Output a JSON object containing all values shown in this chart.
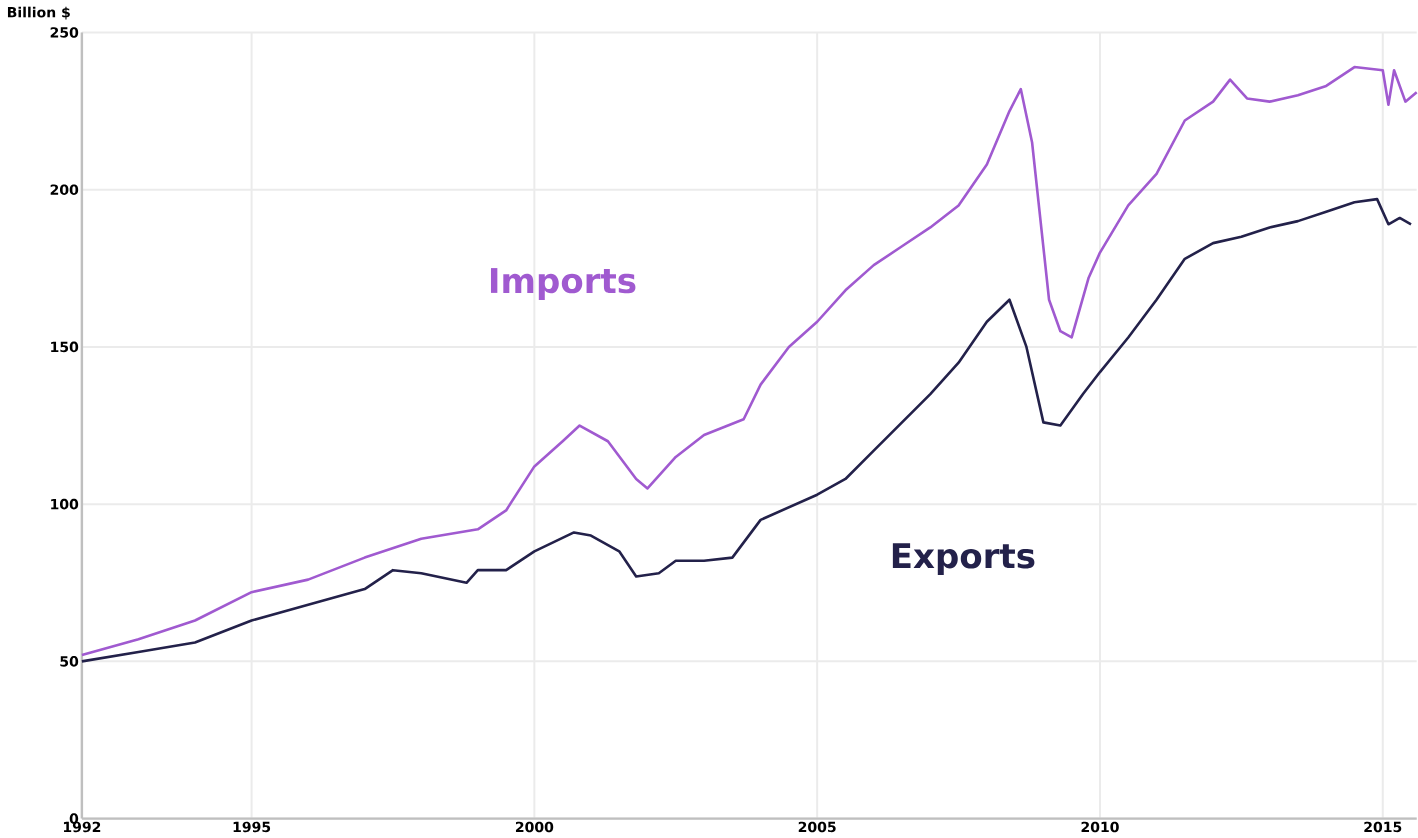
{
  "chart_data": {
    "type": "line",
    "ylabel": "Billion $",
    "xlim": [
      1992,
      2015.6
    ],
    "xticks": [
      1992,
      1995,
      2000,
      2005,
      2010,
      2015
    ],
    "ylim": [
      0,
      250
    ],
    "yticks": [
      0,
      50,
      100,
      150,
      200,
      250
    ],
    "grid": true,
    "legend": false,
    "marker": "none",
    "line_style": "solid",
    "series": [
      {
        "name": "Imports",
        "color": "#a05ad0",
        "x": [
          1992,
          1993,
          1994,
          1995,
          1996,
          1997,
          1998,
          1999,
          1999.5,
          2000,
          2000.5,
          2000.8,
          2001.3,
          2001.8,
          2002,
          2002.5,
          2003,
          2003.7,
          2004,
          2004.5,
          2005,
          2005.5,
          2006,
          2006.5,
          2007,
          2007.5,
          2008,
          2008.4,
          2008.6,
          2008.8,
          2009.1,
          2009.3,
          2009.5,
          2009.8,
          2010,
          2010.5,
          2011,
          2011.5,
          2012,
          2012.3,
          2012.6,
          2013,
          2013.5,
          2014,
          2014.5,
          2015,
          2015.1,
          2015.2,
          2015.4,
          2015.6
        ],
        "values": [
          52,
          57,
          63,
          72,
          76,
          83,
          89,
          92,
          98,
          112,
          120,
          125,
          120,
          108,
          105,
          115,
          122,
          127,
          138,
          150,
          158,
          168,
          176,
          182,
          188,
          195,
          208,
          225,
          232,
          215,
          165,
          155,
          153,
          172,
          180,
          195,
          205,
          222,
          228,
          235,
          229,
          228,
          230,
          233,
          239,
          238,
          227,
          238,
          228,
          231
        ]
      },
      {
        "name": "Exports",
        "color": "#23214a",
        "x": [
          1992,
          1993,
          1994,
          1995,
          1996,
          1997,
          1997.5,
          1998,
          1998.8,
          1999,
          1999.5,
          2000,
          2000.7,
          2001,
          2001.5,
          2001.8,
          2002.2,
          2002.5,
          2003,
          2003.5,
          2004,
          2005,
          2005.5,
          2006,
          2007,
          2007.5,
          2008,
          2008.4,
          2008.7,
          2009,
          2009.3,
          2009.7,
          2010,
          2010.5,
          2011,
          2011.5,
          2012,
          2012.5,
          2013,
          2013.5,
          2014,
          2014.5,
          2014.9,
          2015.1,
          2015.3,
          2015.5
        ],
        "values": [
          50,
          53,
          56,
          63,
          68,
          73,
          79,
          78,
          75,
          79,
          79,
          85,
          91,
          90,
          85,
          77,
          78,
          82,
          82,
          83,
          95,
          103,
          108,
          117,
          135,
          145,
          158,
          165,
          150,
          126,
          125,
          135,
          142,
          153,
          165,
          178,
          183,
          185,
          188,
          190,
          193,
          196,
          197,
          189,
          191,
          189
        ]
      }
    ]
  }
}
